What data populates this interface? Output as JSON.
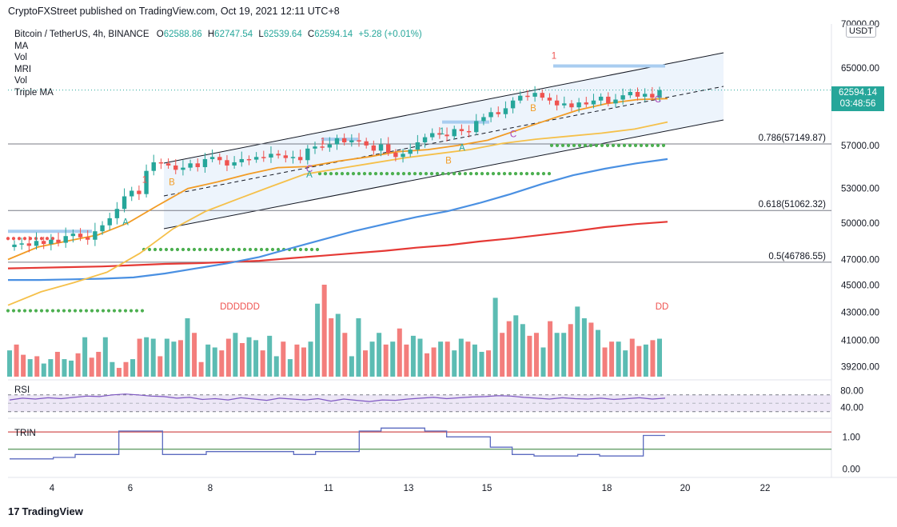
{
  "header": {
    "publish_line": "CryptoFXStreet published on TradingView.com, Oct 19, 2021 12:11 UTC+8"
  },
  "legend": {
    "symbol": "Bitcoin / TetherUS, 4h, BINANCE",
    "ohlc": [
      {
        "k": "O",
        "v": "62588.86"
      },
      {
        "k": "H",
        "v": "62747.54"
      },
      {
        "k": "L",
        "v": "62539.64"
      },
      {
        "k": "C",
        "v": "62594.14"
      }
    ],
    "change": "+5.28 (+0.01%)",
    "indicators": [
      "MA",
      "Vol",
      "MRI",
      "Vol",
      "Triple MA"
    ]
  },
  "axis": {
    "currency": "USDT",
    "last_price": "62594.14",
    "countdown": "03:48:56"
  },
  "footer": {
    "brand": "TradingView"
  },
  "colors": {
    "up": "#26a69a",
    "down": "#ef5350",
    "ma_short": "#f29c25",
    "ma_mid": "#f5c04a",
    "ma_long_blue": "#4a90e2",
    "ma_long_red": "#e53935",
    "channel_fill": "#e8f1fb",
    "rsi_band": "#ede7f6",
    "rsi_line": "#7e57c2",
    "trin_line": "#5c6bc0",
    "dots": "#4caf50"
  },
  "chart_data": {
    "type": "candlestick",
    "title": "Bitcoin / TetherUS, 4h, BINANCE",
    "xlabel": "",
    "ylabel": "USDT",
    "x_ticks": [
      "4",
      "6",
      "8",
      "11",
      "13",
      "15",
      "18",
      "20",
      "22"
    ],
    "price_ticks": [
      "70000.00",
      "65000.00",
      "57000.00",
      "53000.00",
      "50000.00",
      "47000.00",
      "45000.00",
      "43000.00",
      "41000.00",
      "39200.00"
    ],
    "y_range": [
      38500,
      70000
    ],
    "fibonacci": [
      {
        "label": "0.786(57149.87)",
        "value": 57149.87
      },
      {
        "label": "0.618(51062.32)",
        "value": 51062.32
      },
      {
        "label": "0.5(46786.55)",
        "value": 46786.55
      }
    ],
    "close_series": [
      48200,
      48300,
      48100,
      48500,
      48250,
      48600,
      48350,
      48900,
      49100,
      48800,
      48600,
      49300,
      49800,
      50400,
      51200,
      52300,
      52800,
      52500,
      54600,
      55400,
      55300,
      55100,
      54700,
      54900,
      55300,
      54950,
      55700,
      55900,
      55600,
      55100,
      55400,
      55700,
      55650,
      55900,
      55850,
      56200,
      56050,
      55800,
      55900,
      55600,
      56700,
      56900,
      56800,
      57100,
      57700,
      57300,
      57500,
      57400,
      57000,
      56500,
      57100,
      56300,
      55900,
      56200,
      56600,
      57300,
      57800,
      58200,
      58050,
      57900,
      58600,
      58400,
      58300,
      59400,
      59800,
      60300,
      60100,
      60700,
      61500,
      62000,
      61900,
      62300,
      61800,
      61500,
      61000,
      61200,
      60800,
      61300,
      61100,
      61500,
      61900,
      61200,
      61600,
      62050,
      62400,
      61900,
      62200,
      61800,
      62594
    ],
    "series": [
      {
        "name": "MA short",
        "values": [
          47000,
          48000,
          48500,
          49000,
          50000,
          51500,
          53000,
          53600,
          54300,
          54900,
          55000,
          55500,
          55900,
          56400,
          56600,
          57000,
          57500,
          58500,
          59500,
          60500,
          61200,
          61600,
          61700
        ]
      },
      {
        "name": "MA mid",
        "values": [
          43500,
          44500,
          45200,
          46000,
          47500,
          49500,
          51000,
          52100,
          53200,
          54300,
          54800,
          55300,
          55800,
          56200,
          56600,
          57200,
          57600,
          57900,
          58200,
          58600,
          59300
        ]
      },
      {
        "name": "MA long (blue)",
        "values": [
          45400,
          45400,
          45450,
          45500,
          45600,
          45900,
          46300,
          46700,
          47200,
          47900,
          48600,
          49300,
          49900,
          50500,
          51000,
          51700,
          52500,
          53400,
          54200,
          54800,
          55300,
          55700
        ]
      },
      {
        "name": "MA long (red)",
        "values": [
          46300,
          46350,
          46400,
          46450,
          46550,
          46650,
          46700,
          46800,
          46900,
          47100,
          47300,
          47500,
          47700,
          47950,
          48150,
          48450,
          48700,
          49000,
          49300,
          49650,
          49900,
          50100
        ]
      }
    ],
    "annotations": [
      "A",
      "B",
      "1",
      "C",
      "A",
      "B",
      "1",
      "A",
      "1",
      "C",
      "B",
      "1",
      "C",
      "DDDDDD",
      "DD"
    ],
    "volume": [
      18,
      22,
      15,
      12,
      14,
      9,
      12,
      17,
      12,
      11,
      16,
      27,
      13,
      17,
      27,
      10,
      6,
      10,
      12,
      26,
      27,
      26,
      14,
      26,
      24,
      25,
      40,
      30,
      10,
      22,
      20,
      18,
      26,
      30,
      23,
      27,
      25,
      18,
      28,
      14,
      24,
      12,
      22,
      20,
      24,
      50,
      63,
      40,
      43,
      30,
      14,
      40,
      18,
      24,
      30,
      22,
      24,
      33,
      22,
      28,
      26,
      16,
      20,
      24,
      24,
      18,
      26,
      24,
      22,
      17,
      18,
      54,
      30,
      38,
      42,
      36,
      28,
      30,
      20,
      38,
      30,
      30,
      36,
      48,
      40,
      37,
      32,
      20,
      24,
      24,
      18,
      26,
      21,
      22,
      25,
      26
    ],
    "rsi": {
      "name": "RSI",
      "ticks": [
        "80.00",
        "40.00"
      ],
      "range": [
        20,
        100
      ],
      "band": [
        30,
        70
      ],
      "values": [
        58,
        62,
        60,
        63,
        61,
        64,
        67,
        66,
        70,
        72,
        70,
        67,
        66,
        62,
        64,
        59,
        61,
        58,
        63,
        60,
        57,
        62,
        60,
        58,
        61,
        55,
        60,
        57,
        54,
        58,
        57,
        60,
        62,
        64,
        61,
        63,
        65,
        66,
        68,
        67,
        64,
        62,
        60,
        63,
        61,
        60,
        62,
        59,
        61,
        63,
        60,
        62
      ]
    },
    "trin": {
      "name": "TRIN",
      "ticks": [
        "1.00",
        "0.00"
      ],
      "range": [
        -0.2,
        1.6
      ],
      "values": [
        0.35,
        0.35,
        0.4,
        0.5,
        0.5,
        1.3,
        1.3,
        0.5,
        0.5,
        0.6,
        0.6,
        0.6,
        0.6,
        0.5,
        0.6,
        0.6,
        1.3,
        1.4,
        1.4,
        1.3,
        1.1,
        1.1,
        0.75,
        0.5,
        0.45,
        0.45,
        0.5,
        0.45,
        0.45,
        1.15,
        1.15
      ]
    }
  }
}
